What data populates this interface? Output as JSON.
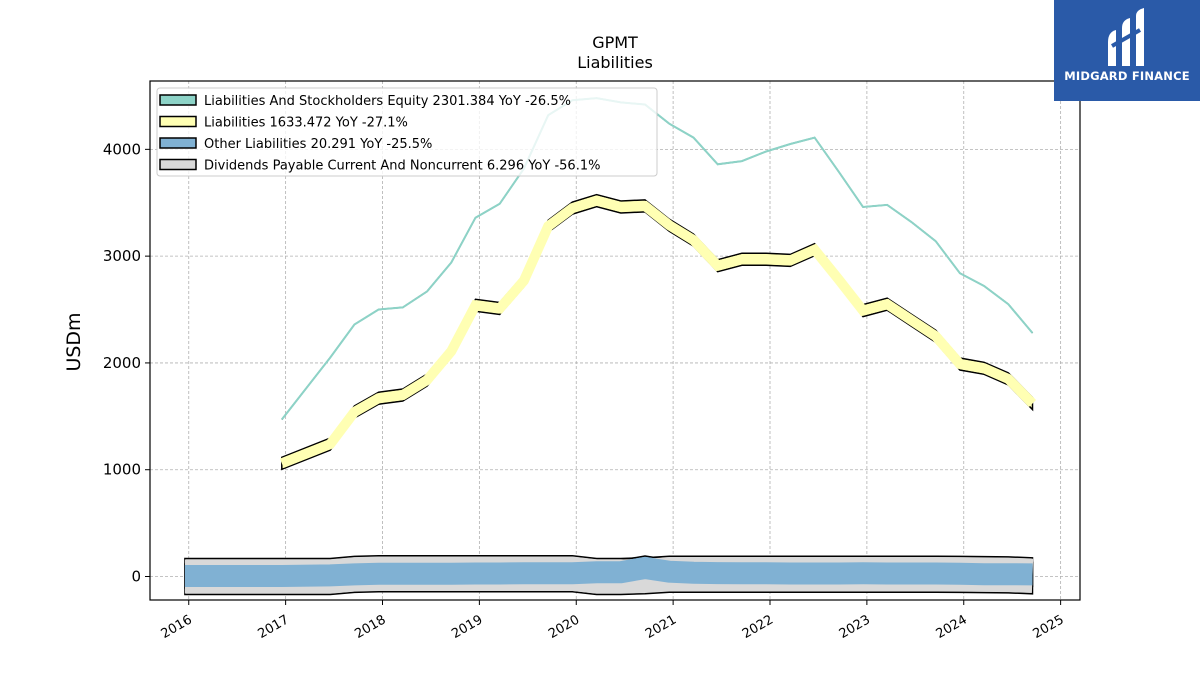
{
  "chart_data": {
    "type": "area",
    "title": "GPMT",
    "subtitle": "Liabilities",
    "ylabel": "USDm",
    "xlabel": "",
    "xlim": [
      2015.6,
      2025.2
    ],
    "ylim": [
      -220,
      4640
    ],
    "yticks": [
      0,
      1000,
      2000,
      3000,
      4000
    ],
    "xticks": [
      "2016",
      "2017",
      "2018",
      "2019",
      "2020",
      "2021",
      "2022",
      "2023",
      "2024",
      "2025"
    ],
    "grid": true,
    "legend_position": "top-left",
    "series": [
      {
        "name": "Liabilities And Stockholders Equity  2301.384 YoY -26.5%",
        "color": "#8dd3c7",
        "x": [
          2016.96,
          2017.46,
          2017.71,
          2017.96,
          2018.21,
          2018.46,
          2018.71,
          2018.96,
          2019.21,
          2019.46,
          2019.71,
          2019.96,
          2020.21,
          2020.46,
          2020.71,
          2020.96,
          2021.21,
          2021.46,
          2021.71,
          2021.96,
          2022.21,
          2022.46,
          2022.71,
          2022.96,
          2023.21,
          2023.46,
          2023.71,
          2023.96,
          2024.21,
          2024.46,
          2024.71
        ],
        "values": [
          1470,
          2050,
          2360,
          2500,
          2520,
          2670,
          2940,
          3360,
          3490,
          3820,
          4320,
          4460,
          4480,
          4440,
          4420,
          4240,
          4110,
          3860,
          3890,
          3980,
          4050,
          4110,
          3790,
          3460,
          3480,
          3320,
          3140,
          2840,
          2720,
          2550,
          2280
        ]
      },
      {
        "name": "Liabilities  1633.472 YoY -27.1%",
        "color": "#ffffb3",
        "x": [
          2016.96,
          2017.46,
          2017.71,
          2017.96,
          2018.21,
          2018.46,
          2018.71,
          2018.96,
          2019.21,
          2019.46,
          2019.71,
          2019.96,
          2020.21,
          2020.46,
          2020.71,
          2020.96,
          2021.21,
          2021.46,
          2021.71,
          2021.96,
          2022.21,
          2022.46,
          2022.71,
          2022.96,
          2023.21,
          2023.46,
          2023.71,
          2023.96,
          2024.21,
          2024.46,
          2024.71
        ],
        "values": [
          1060,
          1240,
          1540,
          1670,
          1700,
          1840,
          2110,
          2540,
          2510,
          2770,
          3280,
          3450,
          3520,
          3460,
          3470,
          3290,
          3150,
          2910,
          2970,
          2970,
          2960,
          3060,
          2780,
          2490,
          2550,
          2400,
          2250,
          1990,
          1950,
          1850,
          1620
        ]
      },
      {
        "name": "Other Liabilities  20.291 YoY -25.5%",
        "color": "#80b1d3",
        "x": [
          2015.96,
          2016.96,
          2017.46,
          2017.71,
          2017.96,
          2018.21,
          2018.46,
          2018.71,
          2018.96,
          2019.21,
          2019.46,
          2019.71,
          2019.96,
          2020.21,
          2020.46,
          2020.71,
          2020.96,
          2021.21,
          2021.46,
          2021.71,
          2021.96,
          2022.21,
          2022.46,
          2022.71,
          2022.96,
          2023.21,
          2023.46,
          2023.71,
          2023.96,
          2024.21,
          2024.46,
          2024.71
        ],
        "values": [
          5,
          5,
          10,
          20,
          25,
          25,
          25,
          25,
          28,
          28,
          30,
          30,
          30,
          40,
          40,
          80,
          45,
          35,
          32,
          30,
          30,
          28,
          28,
          28,
          30,
          28,
          28,
          28,
          25,
          22,
          22,
          20
        ]
      },
      {
        "name": "Dividends Payable Current And Noncurrent  6.296 YoY -56.1%",
        "color": "#d9d9d9",
        "x": [
          2015.96,
          2016.96,
          2017.46,
          2017.71,
          2017.96,
          2018.21,
          2018.46,
          2018.71,
          2018.96,
          2019.21,
          2019.46,
          2019.71,
          2019.96,
          2020.21,
          2020.46,
          2020.71,
          2020.96,
          2021.21,
          2021.46,
          2021.71,
          2021.96,
          2022.21,
          2022.46,
          2022.71,
          2022.96,
          2023.21,
          2023.46,
          2023.71,
          2023.96,
          2024.21,
          2024.46,
          2024.71
        ],
        "values": [
          0,
          0,
          0,
          20,
          25,
          25,
          25,
          25,
          25,
          25,
          25,
          25,
          25,
          0,
          0,
          8,
          22,
          22,
          22,
          22,
          22,
          22,
          22,
          22,
          22,
          22,
          22,
          22,
          20,
          18,
          15,
          6.3
        ]
      }
    ]
  },
  "logo": {
    "text": "MIDGARD FINANCE"
  }
}
